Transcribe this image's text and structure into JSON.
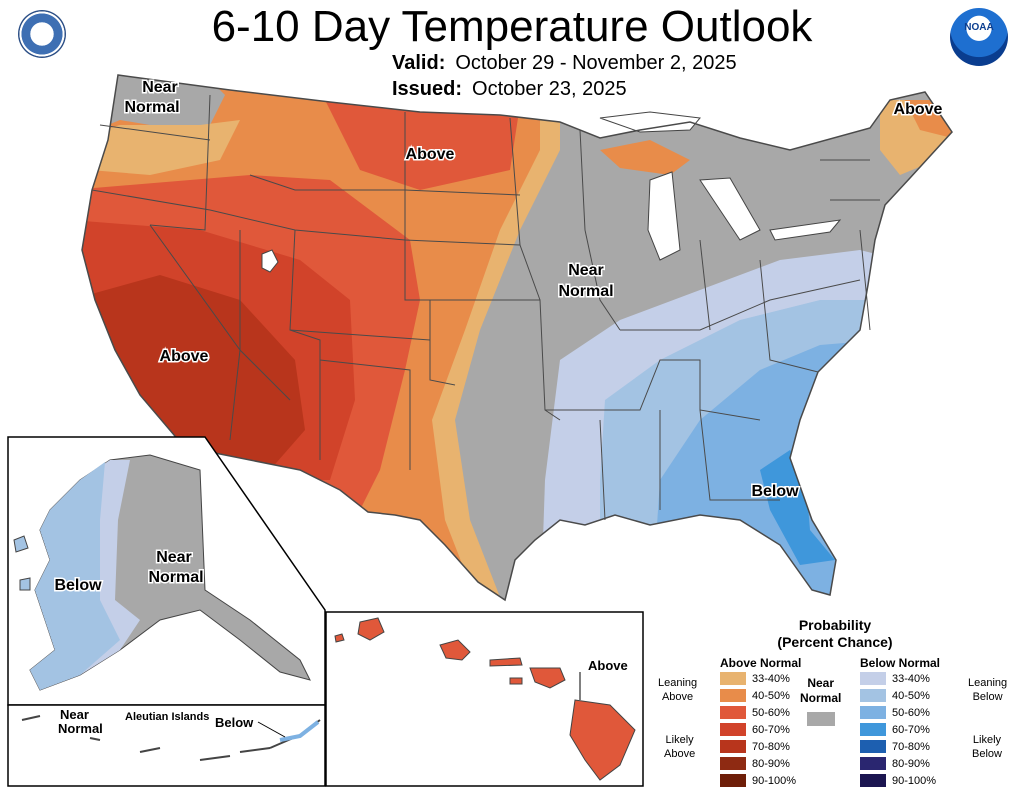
{
  "header": {
    "title": "6-10 Day Temperature Outlook",
    "valid_label": "Valid:",
    "valid_value": "October 29 - November 2, 2025",
    "issued_label": "Issued:",
    "issued_value": "October 23, 2025"
  },
  "map": {
    "labels": {
      "nw_near": "Near",
      "nw_normal": "Normal",
      "north_above": "Above",
      "ne_above": "Above",
      "central_near": "Near",
      "central_normal": "Normal",
      "sw_above": "Above",
      "se_below": "Below",
      "ak_below": "Below",
      "ak_near": "Near",
      "ak_normal": "Normal",
      "aleut_near": "Near",
      "aleut_normal": "Normal",
      "aleut_islands": "Aleutian Islands",
      "aleut_below": "Below",
      "hi_above": "Above"
    }
  },
  "legend": {
    "title_line1": "Probability",
    "title_line2": "(Percent Chance)",
    "above_head": "Above Normal",
    "below_head": "Below Normal",
    "near_line1": "Near",
    "near_line2": "Normal",
    "leaning_above_1": "Leaning",
    "leaning_above_2": "Above",
    "likely_above_1": "Likely",
    "likely_above_2": "Above",
    "leaning_below_1": "Leaning",
    "leaning_below_2": "Below",
    "likely_below_1": "Likely",
    "likely_below_2": "Below",
    "above": [
      {
        "label": "33-40%",
        "color": "#e8b36f"
      },
      {
        "label": "40-50%",
        "color": "#e88c4a"
      },
      {
        "label": "50-60%",
        "color": "#e0583a"
      },
      {
        "label": "60-70%",
        "color": "#d1432a"
      },
      {
        "label": "70-80%",
        "color": "#b8351c"
      },
      {
        "label": "80-90%",
        "color": "#8e2a12"
      },
      {
        "label": "90-100%",
        "color": "#6e1e08"
      }
    ],
    "below": [
      {
        "label": "33-40%",
        "color": "#c4cfe8"
      },
      {
        "label": "40-50%",
        "color": "#a3c3e3"
      },
      {
        "label": "50-60%",
        "color": "#7db1e2"
      },
      {
        "label": "60-70%",
        "color": "#3f97db"
      },
      {
        "label": "70-80%",
        "color": "#1d5fb0"
      },
      {
        "label": "80-90%",
        "color": "#2a2670"
      },
      {
        "label": "90-100%",
        "color": "#1b1550"
      }
    ],
    "near_color": "#a8a8a8"
  }
}
